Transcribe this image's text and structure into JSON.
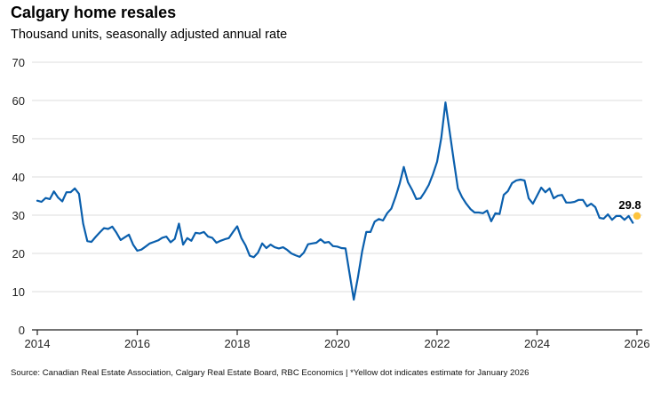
{
  "chart_data": {
    "type": "line",
    "title": "Calgary home resales",
    "subtitle": "Thousand units, seasonally adjusted annual rate",
    "xlabel": "",
    "ylabel": "",
    "ylim": [
      0,
      70
    ],
    "yticks": [
      0,
      10,
      20,
      30,
      40,
      50,
      60,
      70
    ],
    "xlim": [
      2014,
      2026.1
    ],
    "xticks": [
      2014,
      2016,
      2018,
      2020,
      2022,
      2024,
      2026
    ],
    "grid": true,
    "legend": "none",
    "x_start": "2014-01",
    "frequency": "monthly",
    "series": [
      {
        "name": "Calgary home resales",
        "color": "#0a5fad",
        "values": [
          33.8,
          33.5,
          34.5,
          34.2,
          36.2,
          34.6,
          33.6,
          36.0,
          36.0,
          37.0,
          35.6,
          27.8,
          23.2,
          23.0,
          24.3,
          25.5,
          26.6,
          26.4,
          27.0,
          25.4,
          23.5,
          24.2,
          24.9,
          22.3,
          20.7,
          21.0,
          21.8,
          22.6,
          23.0,
          23.4,
          24.1,
          24.4,
          22.9,
          23.8,
          27.8,
          22.3,
          24.0,
          23.3,
          25.4,
          25.2,
          25.6,
          24.4,
          24.1,
          22.8,
          23.3,
          23.7,
          24.0,
          25.6,
          27.1,
          24.0,
          22.1,
          19.4,
          19.0,
          20.2,
          22.6,
          21.4,
          22.3,
          21.6,
          21.3,
          21.6,
          20.9,
          20.0,
          19.5,
          19.1,
          20.2,
          22.4,
          22.6,
          22.8,
          23.7,
          22.8,
          23.0,
          21.9,
          21.8,
          21.4,
          21.3,
          14.5,
          7.9,
          13.8,
          20.5,
          25.6,
          25.6,
          28.3,
          29.0,
          28.6,
          30.5,
          31.7,
          34.7,
          38.2,
          42.6,
          38.6,
          36.6,
          34.2,
          34.4,
          36.0,
          37.9,
          40.7,
          44.0,
          50.2,
          59.5,
          51.9,
          44.4,
          37.0,
          34.7,
          33.0,
          31.6,
          30.7,
          30.7,
          30.5,
          31.2,
          28.4,
          30.5,
          30.3,
          35.3,
          36.3,
          38.4,
          39.1,
          39.3,
          39.1,
          34.4,
          33.0,
          35.1,
          37.2,
          36.0,
          37.0,
          34.4,
          35.1,
          35.3,
          33.3,
          33.3,
          33.5,
          34.0,
          34.0,
          32.3,
          33.0,
          32.1,
          29.3,
          29.1,
          30.2,
          28.8,
          29.8,
          29.8,
          28.8,
          29.8,
          28.0
        ]
      }
    ],
    "estimate_point": {
      "date": "2026-01",
      "value": 29.8,
      "label": "29.8",
      "color": "#fdc33b"
    },
    "annotations": [
      "29.8"
    ],
    "source": "Source: Canadian Real Estate Association, Calgary Real Estate Board, RBC Economics | *Yellow dot indicates estimate for January 2026"
  }
}
